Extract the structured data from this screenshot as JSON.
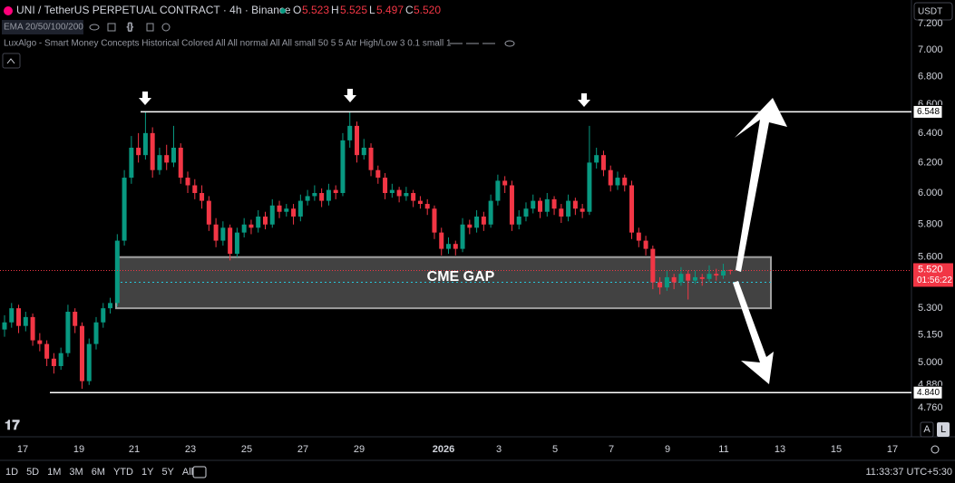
{
  "header": {
    "symbol": "UNI / TetherUS PERPETUAL CONTRACT · 4h · Binance",
    "o_label": "O",
    "o": "5.523",
    "h_label": "H",
    "h": "5.525",
    "l_label": "L",
    "l": "5.497",
    "c_label": "C",
    "c": "5.520",
    "indicator1": "EMA 20/50/100/200",
    "indicator2": "LuxAlgo - Smart Money Concepts Historical Colored All All normal All All small 50 5 5 Atr High/Low 3 0.1 small 1",
    "currency": "USDT"
  },
  "chart_data": {
    "type": "candlestick",
    "log_scale": true,
    "up_color": "#089981",
    "down_color": "#f23645",
    "ylim": [
      4.615,
      7.386
    ],
    "yticks": [
      {
        "value": 4.76,
        "label": "4.760"
      },
      {
        "value": 4.88,
        "label": "4.880"
      },
      {
        "value": 5,
        "label": "5.000"
      },
      {
        "value": 5.15,
        "label": "5.150"
      },
      {
        "value": 5.3,
        "label": "5.300"
      },
      {
        "value": 5.6,
        "label": "5.600"
      },
      {
        "value": 5.8,
        "label": "5.800"
      },
      {
        "value": 6,
        "label": "6.000"
      },
      {
        "value": 6.2,
        "label": "6.200"
      },
      {
        "value": 6.4,
        "label": "6.400"
      },
      {
        "value": 6.6,
        "label": "6.600"
      },
      {
        "value": 6.8,
        "label": "6.800"
      },
      {
        "value": 7,
        "label": "7.000"
      },
      {
        "value": 7.2,
        "label": "7.200"
      }
    ],
    "xtick_labels": [
      "17",
      "19",
      "21",
      "23",
      "25",
      "27",
      "29",
      "2026",
      "3",
      "5",
      "7",
      "9",
      "11",
      "13",
      "15",
      "17"
    ],
    "candles": [
      [
        5.18,
        5.26,
        5.14,
        5.22
      ],
      [
        5.22,
        5.33,
        5.19,
        5.3
      ],
      [
        5.3,
        5.32,
        5.16,
        5.2
      ],
      [
        5.2,
        5.28,
        5.17,
        5.25
      ],
      [
        5.25,
        5.27,
        5.09,
        5.12
      ],
      [
        5.12,
        5.16,
        5.06,
        5.1
      ],
      [
        5.1,
        5.12,
        4.98,
        5.02
      ],
      [
        5.02,
        5.05,
        4.94,
        4.98
      ],
      [
        4.98,
        5.08,
        4.96,
        5.05
      ],
      [
        5.05,
        5.32,
        5.03,
        5.28
      ],
      [
        5.28,
        5.3,
        5.16,
        5.2
      ],
      [
        5.2,
        5.22,
        4.86,
        4.9
      ],
      [
        4.9,
        5.13,
        4.88,
        5.1
      ],
      [
        5.1,
        5.25,
        5.07,
        5.22
      ],
      [
        5.22,
        5.33,
        5.19,
        5.3
      ],
      [
        5.3,
        5.36,
        5.27,
        5.33
      ],
      [
        5.33,
        5.74,
        5.31,
        5.7
      ],
      [
        5.7,
        6.15,
        5.67,
        6.1
      ],
      [
        6.1,
        6.38,
        6.06,
        6.3
      ],
      [
        6.3,
        6.4,
        6.2,
        6.25
      ],
      [
        6.25,
        6.55,
        6.22,
        6.4
      ],
      [
        6.4,
        6.44,
        6.1,
        6.15
      ],
      [
        6.15,
        6.3,
        6.12,
        6.25
      ],
      [
        6.25,
        6.32,
        6.15,
        6.2
      ],
      [
        6.2,
        6.45,
        6.17,
        6.3
      ],
      [
        6.3,
        6.33,
        6.06,
        6.1
      ],
      [
        6.1,
        6.14,
        6,
        6.05
      ],
      [
        6.05,
        6.09,
        5.96,
        6
      ],
      [
        6,
        6.05,
        5.9,
        5.95
      ],
      [
        5.95,
        5.98,
        5.76,
        5.8
      ],
      [
        5.8,
        5.84,
        5.66,
        5.7
      ],
      [
        5.7,
        5.82,
        5.67,
        5.78
      ],
      [
        5.78,
        5.8,
        5.58,
        5.62
      ],
      [
        5.62,
        5.78,
        5.6,
        5.75
      ],
      [
        5.75,
        5.84,
        5.72,
        5.8
      ],
      [
        5.8,
        5.83,
        5.74,
        5.78
      ],
      [
        5.78,
        5.89,
        5.75,
        5.85
      ],
      [
        5.85,
        5.88,
        5.77,
        5.8
      ],
      [
        5.8,
        5.96,
        5.78,
        5.92
      ],
      [
        5.92,
        5.95,
        5.84,
        5.88
      ],
      [
        5.88,
        5.93,
        5.85,
        5.9
      ],
      [
        5.9,
        5.93,
        5.8,
        5.85
      ],
      [
        5.85,
        5.99,
        5.82,
        5.95
      ],
      [
        5.95,
        6.02,
        5.92,
        5.98
      ],
      [
        5.98,
        6.05,
        5.95,
        6
      ],
      [
        6,
        6.03,
        5.91,
        5.95
      ],
      [
        5.95,
        6.06,
        5.92,
        6.02
      ],
      [
        6.02,
        6.05,
        5.96,
        6
      ],
      [
        6,
        6.4,
        5.98,
        6.35
      ],
      [
        6.35,
        6.55,
        6.3,
        6.45
      ],
      [
        6.45,
        6.48,
        6.2,
        6.25
      ],
      [
        6.25,
        6.36,
        6.22,
        6.3
      ],
      [
        6.3,
        6.33,
        6.11,
        6.15
      ],
      [
        6.15,
        6.18,
        6.06,
        6.1
      ],
      [
        6.1,
        6.13,
        5.96,
        6
      ],
      [
        6,
        6.06,
        5.97,
        6.02
      ],
      [
        6.02,
        6.04,
        5.94,
        5.98
      ],
      [
        5.98,
        6.04,
        5.95,
        6
      ],
      [
        6,
        6.02,
        5.91,
        5.95
      ],
      [
        5.95,
        5.98,
        5.9,
        5.93
      ],
      [
        5.93,
        5.96,
        5.86,
        5.9
      ],
      [
        5.9,
        5.92,
        5.71,
        5.75
      ],
      [
        5.75,
        5.78,
        5.61,
        5.65
      ],
      [
        5.65,
        5.72,
        5.62,
        5.68
      ],
      [
        5.68,
        5.7,
        5.61,
        5.65
      ],
      [
        5.65,
        5.84,
        5.63,
        5.8
      ],
      [
        5.8,
        5.83,
        5.74,
        5.78
      ],
      [
        5.78,
        5.89,
        5.75,
        5.85
      ],
      [
        5.85,
        5.88,
        5.76,
        5.8
      ],
      [
        5.8,
        5.99,
        5.78,
        5.95
      ],
      [
        5.95,
        6.12,
        5.92,
        6.08
      ],
      [
        6.08,
        6.11,
        6,
        6.05
      ],
      [
        6.05,
        6.08,
        5.76,
        5.8
      ],
      [
        5.8,
        5.89,
        5.77,
        5.85
      ],
      [
        5.85,
        5.94,
        5.82,
        5.9
      ],
      [
        5.9,
        5.99,
        5.87,
        5.95
      ],
      [
        5.95,
        5.97,
        5.84,
        5.88
      ],
      [
        5.88,
        6,
        5.85,
        5.96
      ],
      [
        5.96,
        5.98,
        5.86,
        5.9
      ],
      [
        5.9,
        5.93,
        5.81,
        5.85
      ],
      [
        5.85,
        5.99,
        5.82,
        5.95
      ],
      [
        5.95,
        5.97,
        5.86,
        5.9
      ],
      [
        5.9,
        5.93,
        5.84,
        5.88
      ],
      [
        5.88,
        6.45,
        5.86,
        6.2
      ],
      [
        6.2,
        6.3,
        6.16,
        6.25
      ],
      [
        6.25,
        6.28,
        6.11,
        6.15
      ],
      [
        6.15,
        6.18,
        6.01,
        6.05
      ],
      [
        6.05,
        6.14,
        6.02,
        6.1
      ],
      [
        6.1,
        6.12,
        6.01,
        6.05
      ],
      [
        6.05,
        6.08,
        5.71,
        5.75
      ],
      [
        5.75,
        5.78,
        5.66,
        5.7
      ],
      [
        5.7,
        5.73,
        5.61,
        5.65
      ],
      [
        5.65,
        5.67,
        5.41,
        5.45
      ],
      [
        5.45,
        5.48,
        5.38,
        5.42
      ],
      [
        5.42,
        5.52,
        5.4,
        5.48
      ],
      [
        5.48,
        5.5,
        5.41,
        5.45
      ],
      [
        5.45,
        5.54,
        5.43,
        5.5
      ],
      [
        5.5,
        5.52,
        5.35,
        5.46
      ],
      [
        5.46,
        5.52,
        5.44,
        5.48
      ],
      [
        5.48,
        5.5,
        5.43,
        5.47
      ],
      [
        5.47,
        5.55,
        5.45,
        5.5
      ],
      [
        5.5,
        5.53,
        5.46,
        5.49
      ],
      [
        5.49,
        5.56,
        5.47,
        5.52
      ],
      [
        5.523,
        5.525,
        5.497,
        5.52
      ]
    ],
    "levels": [
      {
        "value": 6.548,
        "label": "6.548"
      },
      {
        "value": 4.84,
        "label": "4.840"
      }
    ],
    "last_price": {
      "value": 5.52,
      "label": "5.520",
      "countdown": "01:56:22"
    },
    "zone": {
      "label": "CME GAP",
      "top": 5.6,
      "bottom": 5.3,
      "mid": 5.45
    }
  },
  "toolbar": {
    "ranges": [
      "1D",
      "5D",
      "1M",
      "3M",
      "6M",
      "YTD",
      "1Y",
      "5Y",
      "All"
    ],
    "time": "11:33:37 UTC+5:30",
    "scale_a": "A",
    "scale_l": "L"
  }
}
